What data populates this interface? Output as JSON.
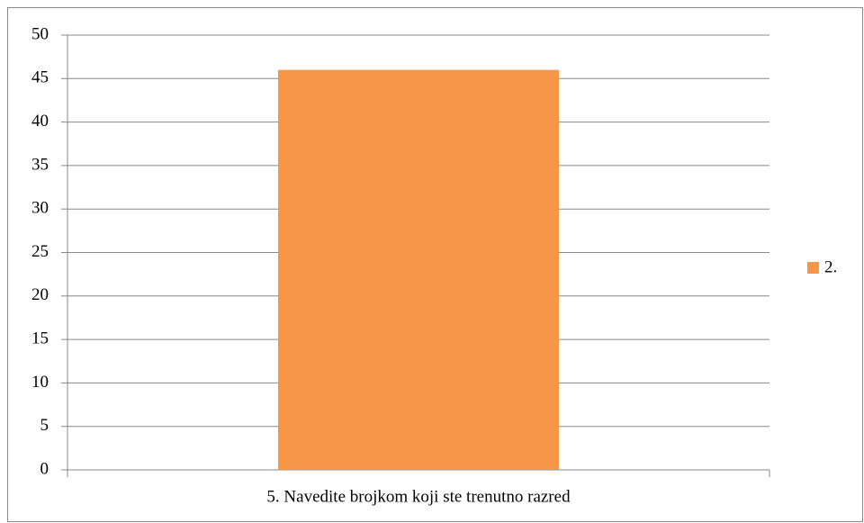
{
  "chart_data": {
    "type": "bar",
    "categories": [
      "5. Navedite brojkom koji ste trenutno razred"
    ],
    "series": [
      {
        "name": "2.",
        "color": "#f79646",
        "values": [
          46
        ]
      }
    ],
    "ylim": [
      0,
      50
    ],
    "yticks": [
      0,
      5,
      10,
      15,
      20,
      25,
      30,
      35,
      40,
      45,
      50
    ],
    "grid": true,
    "legend": "right"
  }
}
